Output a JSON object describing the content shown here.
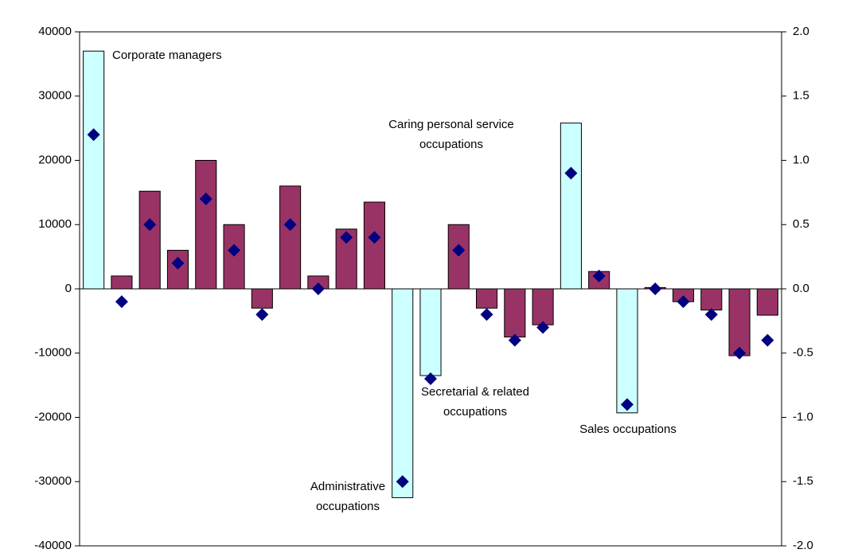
{
  "chart_data": {
    "type": "bar_scatter",
    "categories": [
      null,
      null,
      null,
      null,
      null,
      null,
      null,
      null,
      null,
      null,
      null,
      null,
      null,
      null,
      null,
      null,
      null,
      null,
      null,
      null,
      null,
      null,
      null,
      null,
      null
    ],
    "series": [
      {
        "values": [
          37000,
          2000,
          15200,
          6000,
          20000,
          10000,
          -3000,
          16000,
          2000,
          9300,
          13500,
          -32500,
          -13500,
          10000,
          -3000,
          -7500,
          -5600,
          25800,
          2700,
          -19300,
          200,
          -2000,
          -3300,
          -10400,
          -4100
        ],
        "colors": [
          "#ccffff",
          "#993366",
          "#993366",
          "#993366",
          "#993366",
          "#993366",
          "#993366",
          "#993366",
          "#993366",
          "#993366",
          "#993366",
          "#ccffff",
          "#ccffff",
          "#993366",
          "#993366",
          "#993366",
          "#993366",
          "#ccffff",
          "#993366",
          "#ccffff",
          "#993366",
          "#993366",
          "#993366",
          "#993366",
          "#993366"
        ]
      },
      {
        "values": [
          1.2,
          -0.1,
          0.5,
          0.2,
          0.7,
          0.3,
          -0.2,
          0.5,
          0.0,
          0.4,
          0.4,
          -1.5,
          -0.7,
          0.3,
          -0.2,
          -0.4,
          -0.3,
          0.9,
          0.1,
          -0.9,
          0.0,
          -0.1,
          -0.2,
          -0.5,
          -0.4
        ],
        "color": "#000080",
        "axis": "y2"
      }
    ],
    "ylim": [
      -40000,
      40000
    ],
    "yticks": [
      40000,
      30000,
      20000,
      10000,
      0,
      -10000,
      -20000,
      -30000,
      -40000
    ],
    "y2lim": [
      -2,
      2
    ],
    "y2ticks": [
      {
        "value": 2,
        "label": "2.0"
      },
      1.5,
      {
        "value": 1,
        "label": "1.0"
      },
      0.5,
      {
        "value": 0,
        "label": "0.0"
      },
      -0.5,
      {
        "value": -1,
        "label": "-1.0"
      },
      -1.5,
      {
        "value": -2,
        "label": "-2.0"
      }
    ],
    "annotations": [
      [
        "Corporate managers"
      ],
      [
        "Administrative",
        "occupations"
      ],
      [
        "Secretarial & related",
        "occupations"
      ],
      [
        "Caring personal service",
        "occupations"
      ],
      [
        "Sales occupations"
      ]
    ]
  }
}
